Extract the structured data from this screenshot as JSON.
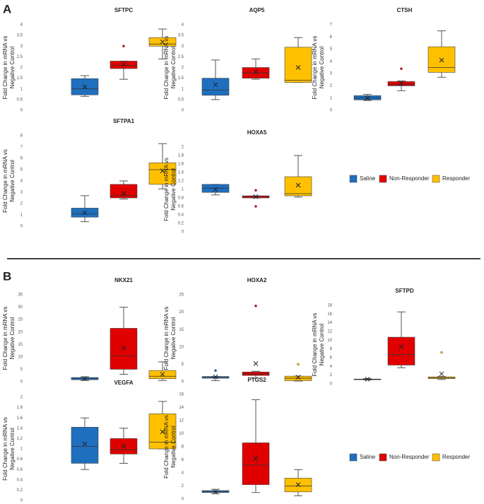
{
  "panels": [
    {
      "label": "A",
      "legend": [
        {
          "name": "Saline",
          "color": "#1f6fbf"
        },
        {
          "name": "Non-Responder",
          "color": "#e00000"
        },
        {
          "name": "Responder",
          "color": "#ffc000"
        }
      ]
    },
    {
      "label": "B",
      "legend": [
        {
          "name": "Saline",
          "color": "#1f6fbf"
        },
        {
          "name": "Non-Responder",
          "color": "#e00000"
        },
        {
          "name": "Responder",
          "color": "#ffc000"
        }
      ]
    }
  ],
  "chart_data": [
    {
      "type": "box",
      "title": "SFTPC",
      "ylabel": [
        "Fold Change in mRNA vs",
        "Negative Control"
      ],
      "ylim": [
        0,
        4
      ],
      "yticks": [
        0,
        0.5,
        1,
        1.5,
        2,
        2.5,
        3,
        3.5,
        4
      ],
      "series": [
        {
          "name": "Saline",
          "color": "#1f6fbf",
          "stats": [
            0.65,
            0.72,
            1.0,
            1.48,
            1.62
          ],
          "mean": 1.1,
          "outliers": []
        },
        {
          "name": "Non-Responder",
          "color": "#e00000",
          "stats": [
            1.45,
            1.95,
            2.1,
            2.3,
            2.3
          ],
          "mean": 2.15,
          "outliers": [
            3.0
          ]
        },
        {
          "name": "Responder",
          "color": "#ffc000",
          "stats": [
            2.4,
            3.0,
            3.1,
            3.4,
            3.8
          ],
          "mean": 3.2,
          "outliers": []
        }
      ]
    },
    {
      "type": "box",
      "title": "AQP5",
      "ylabel": [
        "Fold Change in mRNA vs",
        "Negative Control"
      ],
      "ylim": [
        0,
        4
      ],
      "yticks": [
        0,
        0.5,
        1,
        1.5,
        2,
        2.5,
        3,
        3.5,
        4
      ],
      "series": [
        {
          "name": "Saline",
          "color": "#1f6fbf",
          "stats": [
            0.5,
            0.7,
            0.95,
            1.5,
            2.35
          ],
          "mean": 1.2,
          "outliers": []
        },
        {
          "name": "Non-Responder",
          "color": "#e00000",
          "stats": [
            1.45,
            1.5,
            1.75,
            2.0,
            2.4
          ],
          "mean": 1.8,
          "outliers": []
        },
        {
          "name": "Responder",
          "color": "#ffc000",
          "stats": [
            1.3,
            1.3,
            1.4,
            2.95,
            3.4
          ],
          "mean": 2.0,
          "outliers": []
        }
      ]
    },
    {
      "type": "box",
      "title": "CTSH",
      "ylabel": [
        "Fold Change in mRNA vs",
        "Negative Control"
      ],
      "ylim": [
        0,
        7
      ],
      "yticks": [
        0,
        1,
        2,
        3,
        4,
        5,
        6,
        7
      ],
      "series": [
        {
          "name": "Saline",
          "color": "#1f6fbf",
          "stats": [
            0.8,
            0.85,
            1.0,
            1.2,
            1.3
          ],
          "mean": 1.0,
          "outliers": []
        },
        {
          "name": "Non-Responder",
          "color": "#e00000",
          "stats": [
            1.6,
            2.0,
            2.1,
            2.35,
            2.4
          ],
          "mean": 2.2,
          "outliers": [
            3.4
          ]
        },
        {
          "name": "Responder",
          "color": "#ffc000",
          "stats": [
            2.7,
            3.1,
            3.5,
            5.2,
            6.5
          ],
          "mean": 4.1,
          "outliers": []
        }
      ]
    },
    {
      "type": "box",
      "title": "SFTPA1",
      "ylabel": [
        "Fold Change in mRNA vs",
        "Negative Control"
      ],
      "ylim": [
        0,
        8
      ],
      "yticks": [
        0,
        1,
        2,
        3,
        4,
        5,
        6,
        7,
        8
      ],
      "series": [
        {
          "name": "Saline",
          "color": "#1f6fbf",
          "stats": [
            0.4,
            0.8,
            1.1,
            1.6,
            2.7
          ],
          "mean": 1.2,
          "outliers": []
        },
        {
          "name": "Non-Responder",
          "color": "#e00000",
          "stats": [
            2.4,
            2.5,
            2.7,
            3.7,
            4.0
          ],
          "mean": 2.9,
          "outliers": []
        },
        {
          "name": "Responder",
          "color": "#ffc000",
          "stats": [
            3.3,
            3.7,
            5.0,
            5.6,
            7.3
          ],
          "mean": 4.9,
          "outliers": []
        }
      ]
    },
    {
      "type": "box",
      "title": "HOXA5",
      "ylabel": [
        "Fold Change in mRNA vs",
        "Negative Control"
      ],
      "ylim": [
        0,
        2
      ],
      "yticks": [
        0,
        0.2,
        0.4,
        0.6,
        0.8,
        1,
        1.2,
        1.4,
        1.6,
        1.8,
        2
      ],
      "series": [
        {
          "name": "Saline",
          "color": "#1f6fbf",
          "stats": [
            0.87,
            0.93,
            1.03,
            1.12,
            1.12
          ],
          "mean": 1.0,
          "outliers": []
        },
        {
          "name": "Non-Responder",
          "color": "#e00000",
          "stats": [
            0.8,
            0.8,
            0.83,
            0.85,
            0.85
          ],
          "mean": 0.83,
          "outliers": [
            0.6,
            0.98
          ]
        },
        {
          "name": "Responder",
          "color": "#ffc000",
          "stats": [
            0.82,
            0.85,
            0.9,
            1.3,
            1.8
          ],
          "mean": 1.1,
          "outliers": []
        }
      ]
    },
    {
      "type": "box",
      "title": "NKX21",
      "ylabel": [
        "Fold Change in mRNA vs",
        "Negative Control"
      ],
      "ylim": [
        0,
        35
      ],
      "yticks": [
        0,
        5,
        10,
        15,
        20,
        25,
        30,
        35
      ],
      "series": [
        {
          "name": "Saline",
          "color": "#1f6fbf",
          "stats": [
            0.5,
            0.8,
            1.2,
            1.7,
            2.0
          ],
          "mean": 1.2,
          "outliers": []
        },
        {
          "name": "Non-Responder",
          "color": "#e00000",
          "stats": [
            3,
            5,
            10.5,
            21.5,
            30
          ],
          "mean": 13.5,
          "outliers": []
        },
        {
          "name": "Responder",
          "color": "#ffc000",
          "stats": [
            0.5,
            1.2,
            2.2,
            4.5,
            8
          ],
          "mean": 3.0,
          "outliers": []
        }
      ]
    },
    {
      "type": "box",
      "title": "HOXA2",
      "ylabel": [
        "Fold Change in mRNA vs",
        "Negative Control"
      ],
      "ylim": [
        0,
        25
      ],
      "yticks": [
        0,
        5,
        10,
        15,
        20,
        25
      ],
      "series": [
        {
          "name": "Saline",
          "color": "#1f6fbf",
          "stats": [
            0.3,
            1.0,
            1.3,
            1.5,
            1.5
          ],
          "mean": 1.4,
          "outliers": [
            3.2
          ]
        },
        {
          "name": "Non-Responder",
          "color": "#e00000",
          "stats": [
            1,
            1.8,
            2.2,
            2.8,
            3
          ],
          "mean": 5.2,
          "outliers": [
            21.8
          ]
        },
        {
          "name": "Responder",
          "color": "#ffc000",
          "stats": [
            0.2,
            0.3,
            1,
            1.6,
            1.6
          ],
          "mean": 1.3,
          "outliers": [
            5
          ]
        }
      ]
    },
    {
      "type": "box",
      "title": "SFTPD",
      "ylabel": [
        "Fold Change in mRNA vs",
        "Negative Control"
      ],
      "ylim": [
        0,
        18
      ],
      "yticks": [
        0,
        2,
        4,
        6,
        8,
        10,
        12,
        14,
        16,
        18
      ],
      "series": [
        {
          "name": "Saline",
          "color": "#1f6fbf",
          "stats": [
            0.9,
            1.0,
            1.05,
            1.1,
            1.2
          ],
          "mean": 1.05,
          "outliers": []
        },
        {
          "name": "Non-Responder",
          "color": "#e00000",
          "stats": [
            3.7,
            4.3,
            6.7,
            10.7,
            16.5
          ],
          "mean": 8.5,
          "outliers": []
        },
        {
          "name": "Responder",
          "color": "#ffc000",
          "stats": [
            1.0,
            1.2,
            1.4,
            1.6,
            1.7
          ],
          "mean": 2.3,
          "outliers": [
            7.2
          ]
        }
      ]
    },
    {
      "type": "box",
      "title": "VEGFA",
      "ylabel": [
        "Fold Change in mRNA vs",
        "Negative Control"
      ],
      "ylim": [
        0,
        2
      ],
      "yticks": [
        0,
        0.2,
        0.4,
        0.6,
        0.8,
        1,
        1.2,
        1.4,
        1.6,
        1.8,
        2
      ],
      "series": [
        {
          "name": "Saline",
          "color": "#1f6fbf",
          "stats": [
            0.6,
            0.72,
            1.05,
            1.42,
            1.6
          ],
          "mean": 1.1,
          "outliers": []
        },
        {
          "name": "Non-Responder",
          "color": "#e00000",
          "stats": [
            0.72,
            0.9,
            0.98,
            1.2,
            1.4
          ],
          "mean": 1.05,
          "outliers": []
        },
        {
          "name": "Responder",
          "color": "#ffc000",
          "stats": [
            1.0,
            1.0,
            1.13,
            1.68,
            1.92
          ],
          "mean": 1.33,
          "outliers": []
        }
      ]
    },
    {
      "type": "box",
      "title": "PTGS2",
      "ylabel": [
        "Fold Change in mRNA vs",
        "Negative Control"
      ],
      "ylim": [
        0,
        16
      ],
      "yticks": [
        0,
        2,
        4,
        6,
        8,
        10,
        12,
        14,
        16
      ],
      "series": [
        {
          "name": "Saline",
          "color": "#1f6fbf",
          "stats": [
            0.8,
            1.0,
            1.1,
            1.3,
            1.5
          ],
          "mean": 1.1,
          "outliers": []
        },
        {
          "name": "Non-Responder",
          "color": "#e00000",
          "stats": [
            1,
            2.2,
            5.2,
            8.6,
            15.2
          ],
          "mean": 6.2,
          "outliers": []
        },
        {
          "name": "Responder",
          "color": "#ffc000",
          "stats": [
            0.5,
            1.1,
            2.0,
            3.2,
            4.5
          ],
          "mean": 2.2,
          "outliers": []
        }
      ]
    }
  ]
}
